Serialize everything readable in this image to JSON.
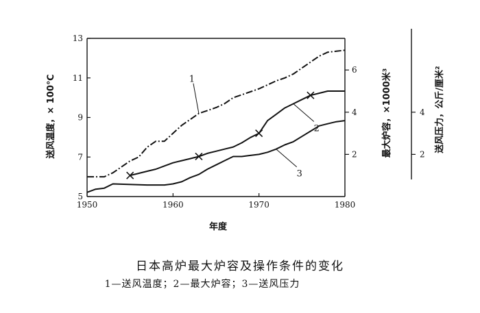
{
  "figure": {
    "title": "日本高炉最大炉容及操作条件的变化",
    "legend_text": "1—送风温度；2—最大炉容；3—送风压力"
  },
  "chart_data": {
    "type": "line",
    "title": "日本高炉最大炉容及操作条件的变化",
    "xlabel": "年度",
    "x_ticks": [
      "1950",
      "1960",
      "1970",
      "1980"
    ],
    "xlim": [
      1950,
      1980
    ],
    "left_axis": {
      "label": "送风温度，× 100℃",
      "ylim": [
        5,
        13
      ],
      "ticks": [
        "5",
        "7",
        "9",
        "11",
        "13"
      ]
    },
    "right_axis_1": {
      "label": "最大炉容，×1000米³",
      "ylim": [
        0,
        7.5
      ],
      "ticks": [
        "2",
        "4",
        "6"
      ]
    },
    "right_axis_2": {
      "label": "送风压力，公斤/厘米²",
      "ylim": [
        0,
        7.5
      ],
      "ticks": [
        "2",
        "4"
      ]
    },
    "legend": [
      "1—送风温度",
      "2—最大炉容",
      "3—送风压力"
    ],
    "series": [
      {
        "name": "1",
        "axis": "left",
        "style": "dash-dot",
        "x": [
          1950,
          1951,
          1952,
          1953,
          1954,
          1955,
          1956,
          1957,
          1958,
          1959,
          1960,
          1961,
          1962,
          1963,
          1964,
          1965,
          1966,
          1967,
          1968,
          1969,
          1970,
          1971,
          1972,
          1973,
          1974,
          1975,
          1976,
          1977,
          1978,
          1979,
          1980
        ],
        "values": [
          6.0,
          6.0,
          6.0,
          6.2,
          6.5,
          6.8,
          7.0,
          7.5,
          7.8,
          7.8,
          8.2,
          8.6,
          8.9,
          9.2,
          9.35,
          9.5,
          9.7,
          10.0,
          10.15,
          10.3,
          10.45,
          10.65,
          10.85,
          11.0,
          11.2,
          11.5,
          11.8,
          12.1,
          12.3,
          12.35,
          12.4
        ]
      },
      {
        "name": "2",
        "axis": "right_1",
        "style": "solid",
        "markers_x": [
          1955,
          1963,
          1970,
          1976
        ],
        "x": [
          1955,
          1956,
          1957,
          1958,
          1959,
          1960,
          1961,
          1962,
          1963,
          1964,
          1965,
          1966,
          1967,
          1968,
          1969,
          1970,
          1971,
          1972,
          1973,
          1974,
          1975,
          1976,
          1977,
          1978,
          1979,
          1980
        ],
        "values": [
          1.0,
          1.1,
          1.2,
          1.3,
          1.45,
          1.6,
          1.7,
          1.8,
          1.9,
          2.05,
          2.15,
          2.25,
          2.35,
          2.55,
          2.8,
          3.0,
          3.6,
          3.9,
          4.2,
          4.4,
          4.6,
          4.8,
          4.9,
          5.0,
          5.0,
          5.0
        ]
      },
      {
        "name": "3",
        "axis": "right_2",
        "style": "solid",
        "x": [
          1950,
          1951,
          1952,
          1953,
          1957,
          1958,
          1959,
          1960,
          1961,
          1962,
          1963,
          1964,
          1965,
          1966,
          1967,
          1968,
          1969,
          1970,
          1971,
          1972,
          1973,
          1974,
          1975,
          1976,
          1977,
          1978,
          1979,
          1980
        ],
        "values": [
          0.2,
          0.35,
          0.4,
          0.6,
          0.55,
          0.55,
          0.55,
          0.6,
          0.7,
          0.9,
          1.05,
          1.3,
          1.5,
          1.7,
          1.9,
          1.9,
          1.95,
          2.0,
          2.1,
          2.25,
          2.45,
          2.6,
          2.85,
          3.1,
          3.35,
          3.45,
          3.55,
          3.6
        ]
      }
    ]
  }
}
